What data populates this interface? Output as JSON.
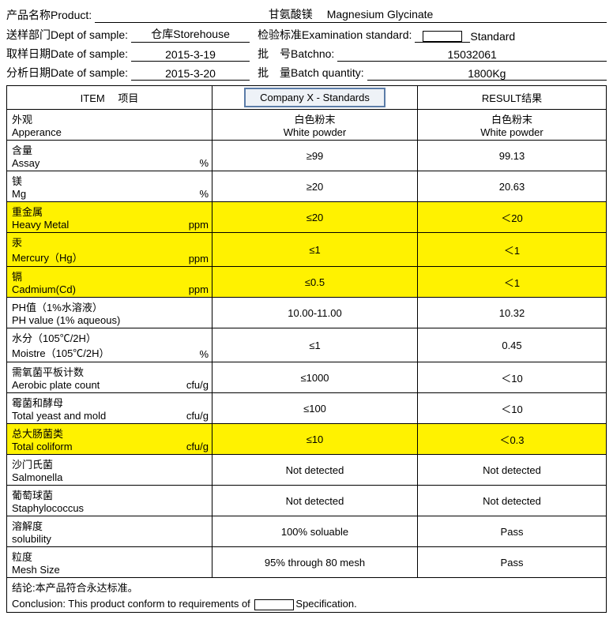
{
  "header": {
    "productLabel": "产品名称Product:",
    "productValue": "甘氨酸镁　 Magnesium Glycinate",
    "deptLabel": "送样部门Dept of sample:",
    "deptValue": "仓库Storehouse",
    "stdLabel": "检验标准Examination standard:",
    "stdBlank": "",
    "stdSuffix": "Standard",
    "dateSampleLabel": "取样日期Date of sample:",
    "dateSampleValue": "2015-3-19",
    "batchNoLabel": "批　号Batchno:",
    "batchNoValue": "15032061",
    "dateAnalysisLabel": "分析日期Date of sample:",
    "dateAnalysisValue": "2015-3-20",
    "batchQtyLabel": "批　量Batch quantity:",
    "batchQtyValue": "1800Kg"
  },
  "tableHeader": {
    "item": "ITEM　 项目",
    "standard": "Company X - Standards",
    "result": "RESULT结果"
  },
  "rows": [
    {
      "cn": "外观",
      "en": "Apperance",
      "unit": "",
      "std": "白色粉末\nWhite powder",
      "res": "白色粉末\nWhite powder",
      "hl": false
    },
    {
      "cn": "含量",
      "en": "Assay",
      "unit": "%",
      "std": "≥99",
      "res": "99.13",
      "hl": false
    },
    {
      "cn": "镁",
      "en": "Mg",
      "unit": "%",
      "std": "≥20",
      "res": "20.63",
      "hl": false
    },
    {
      "cn": "重金属",
      "en": "Heavy Metal",
      "unit": "ppm",
      "std": "≤20",
      "res": "＜20",
      "hl": true
    },
    {
      "cn": "汞",
      "en": "Mercury（Hg）",
      "unit": "ppm",
      "std": "≤1",
      "res": "＜1",
      "hl": true
    },
    {
      "cn": "镉",
      "en": "Cadmium(Cd)",
      "unit": "ppm",
      "std": "≤0.5",
      "res": "＜1",
      "hl": true
    },
    {
      "cn": "PH值（1%水溶液）",
      "en": "PH value (1% aqueous)",
      "unit": "",
      "std": "10.00-11.00",
      "res": "10.32",
      "hl": false
    },
    {
      "cn": "水分（105℃/2H）",
      "en": "Moistre（105℃/2H）",
      "unit": "%",
      "std": "≤1",
      "res": "0.45",
      "hl": false
    },
    {
      "cn": "需氧菌平板计数",
      "en": "Aerobic plate count",
      "unit": "cfu/g",
      "std": "≤1000",
      "res": "＜10",
      "hl": false
    },
    {
      "cn": "霉菌和酵母",
      "en": "Total yeast and mold",
      "unit": "cfu/g",
      "std": "≤100",
      "res": "＜10",
      "hl": false
    },
    {
      "cn": "总大肠菌类",
      "en": "Total coliform",
      "unit": "cfu/g",
      "std": "≤10",
      "res": "＜0.3",
      "hl": true
    },
    {
      "cn": "沙门氏菌",
      "en": "Salmonella",
      "unit": "",
      "std": "Not detected",
      "res": "Not detected",
      "hl": false
    },
    {
      "cn": "葡萄球菌",
      "en": "Staphylococcus",
      "unit": "",
      "std": "Not detected",
      "res": "Not detected",
      "hl": false
    },
    {
      "cn": "溶解度",
      "en": "solubility",
      "unit": "",
      "std": "100% soluable",
      "res": "Pass",
      "hl": false
    },
    {
      "cn": "粒度",
      "en": "Mesh Size",
      "unit": "",
      "std": "95% through 80 mesh",
      "res": "Pass",
      "hl": false
    }
  ],
  "conclusion": {
    "cn": "结论:本产品符合永达标准。",
    "enPrefix": "Conclusion: This product conform to requirements of ",
    "enSuffix": "Specification."
  }
}
